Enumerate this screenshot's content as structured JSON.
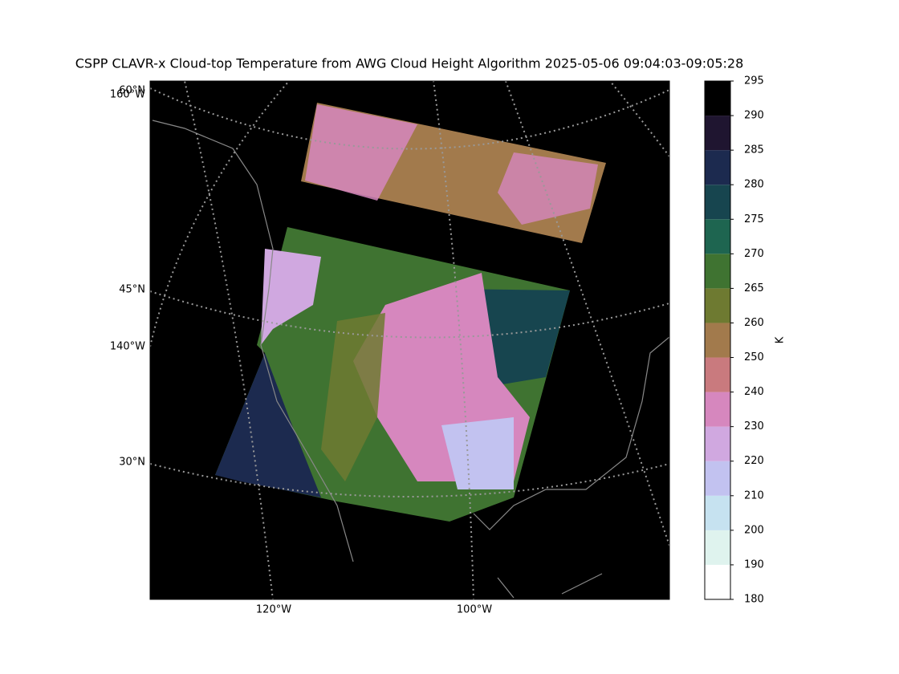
{
  "title": "CSPP CLAVR-x Cloud-top Temperature from AWG Cloud Height Algorithm 2025-05-06 09:04:03-09:05:28",
  "map": {
    "lat_labels": [
      "60°N",
      "45°N",
      "30°N"
    ],
    "lon_labels_left": [
      "160°W",
      "140°W"
    ],
    "lon_labels_bottom": [
      "120°W",
      "100°W"
    ]
  },
  "colorbar": {
    "label": "K",
    "ticks": [
      180,
      190,
      200,
      210,
      220,
      230,
      240,
      250,
      260,
      265,
      270,
      275,
      280,
      285,
      290,
      295
    ],
    "colors": [
      "#ffffff",
      "#dff3ee",
      "#c6e2f0",
      "#c2c2f0",
      "#d0a8e0",
      "#d687be",
      "#c97a7e",
      "#a27a4c",
      "#6e7a31",
      "#3f7331",
      "#1e6550",
      "#17454f",
      "#1c2a4f",
      "#1f1530",
      "#000000"
    ]
  }
}
